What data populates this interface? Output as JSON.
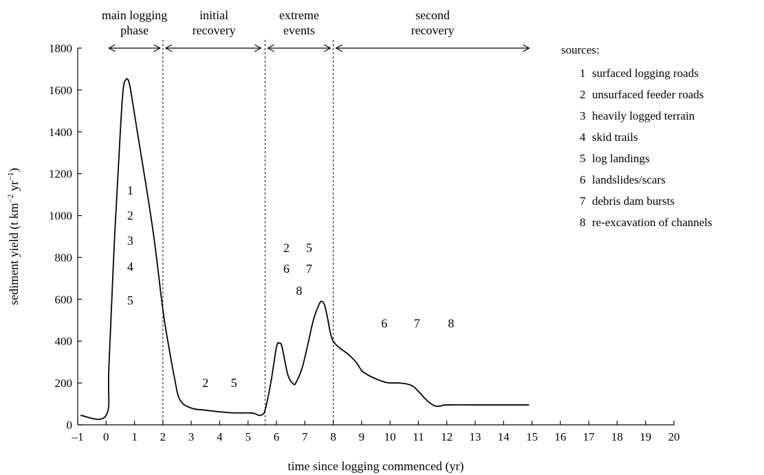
{
  "chart_data": {
    "type": "line",
    "title": "",
    "xlabel": "time since logging commenced (yr)",
    "ylabel": "sediment yield (t km",
    "ylabel_sup1": "−2",
    "ylabel_mid": " yr",
    "ylabel_sup2": "−1",
    "ylabel_end": ")",
    "xlim": [
      -1,
      20
    ],
    "ylim": [
      0,
      1800
    ],
    "xticks": [
      -1,
      0,
      1,
      2,
      3,
      4,
      5,
      6,
      7,
      8,
      9,
      10,
      11,
      12,
      13,
      14,
      15,
      16,
      17,
      18,
      19,
      20
    ],
    "xtick_labels": [
      "–1",
      "0",
      "1",
      "2",
      "3",
      "4",
      "5",
      "6",
      "7",
      "8",
      "9",
      "10",
      "11",
      "12",
      "13",
      "14",
      "15",
      "16",
      "17",
      "18",
      "19",
      "20"
    ],
    "yticks": [
      0,
      200,
      400,
      600,
      800,
      1000,
      1200,
      1400,
      1600,
      1800
    ],
    "ytick_labels": [
      "0",
      "200",
      "400",
      "600",
      "800",
      "1000",
      "1200",
      "1400",
      "1600",
      "1800"
    ],
    "grid": false,
    "color": "#000000",
    "series": [
      {
        "x": [
          -0.9,
          0,
          0.1,
          0.3,
          0.5,
          0.6,
          0.7,
          0.8,
          0.9,
          1.1,
          1.4,
          1.7,
          2.0,
          2.2,
          2.4,
          2.6,
          3.0,
          3.5,
          4.0,
          4.5,
          5.0,
          5.2,
          5.4,
          5.5,
          5.6,
          5.8,
          6.0,
          6.1,
          6.2,
          6.4,
          6.6,
          6.7,
          6.9,
          7.1,
          7.3,
          7.5,
          7.6,
          7.7,
          7.8,
          7.9,
          8.0,
          8.2,
          8.5,
          8.8,
          9.0,
          9.2,
          9.5,
          9.8,
          10.0,
          10.3,
          10.6,
          10.8,
          11.0,
          11.2,
          11.4,
          11.6,
          11.8,
          12.0,
          13.0,
          14.0,
          14.9
        ],
        "y": [
          45,
          45,
          280,
          900,
          1400,
          1600,
          1650,
          1640,
          1570,
          1400,
          1150,
          880,
          550,
          380,
          230,
          120,
          80,
          70,
          62,
          57,
          57,
          55,
          45,
          50,
          70,
          200,
          370,
          390,
          370,
          240,
          195,
          205,
          270,
          380,
          500,
          575,
          590,
          570,
          510,
          440,
          400,
          370,
          340,
          300,
          260,
          240,
          220,
          205,
          200,
          200,
          195,
          185,
          160,
          130,
          105,
          90,
          90,
          95,
          95,
          95,
          95
        ]
      }
    ],
    "phases": [
      {
        "line1": "main logging",
        "line2": "phase",
        "x_from": 0.1,
        "x_to": 1.9,
        "label_x": 1.0
      },
      {
        "line1": "initial",
        "line2": "recovery",
        "x_from": 2.1,
        "x_to": 5.45,
        "label_x": 3.8
      },
      {
        "line1": "extreme",
        "line2": "events",
        "x_from": 5.7,
        "x_to": 7.9,
        "label_x": 6.8
      },
      {
        "line1": "second",
        "line2": "recovery",
        "x_from": 8.1,
        "x_to": 14.9,
        "label_x": 11.5
      }
    ],
    "phase_boundaries": [
      2,
      5.6,
      8
    ],
    "source_annotations": [
      {
        "text": "1",
        "x": 0.85,
        "y": 1120
      },
      {
        "text": "2",
        "x": 0.85,
        "y": 1000
      },
      {
        "text": "3",
        "x": 0.85,
        "y": 880
      },
      {
        "text": "4",
        "x": 0.85,
        "y": 755
      },
      {
        "text": "5",
        "x": 0.85,
        "y": 595
      },
      {
        "text": "2",
        "x": 3.5,
        "y": 200
      },
      {
        "text": "5",
        "x": 4.5,
        "y": 200
      },
      {
        "text": "2",
        "x": 6.35,
        "y": 845
      },
      {
        "text": "5",
        "x": 7.15,
        "y": 845
      },
      {
        "text": "6",
        "x": 6.35,
        "y": 745
      },
      {
        "text": "7",
        "x": 7.15,
        "y": 745
      },
      {
        "text": "8",
        "x": 6.8,
        "y": 640
      },
      {
        "text": "6",
        "x": 9.8,
        "y": 485
      },
      {
        "text": "7",
        "x": 10.95,
        "y": 485
      },
      {
        "text": "8",
        "x": 12.15,
        "y": 485
      }
    ],
    "legend": {
      "title": "sources:",
      "placement": "right",
      "items": [
        {
          "num": "1",
          "label": "surfaced logging roads"
        },
        {
          "num": "2",
          "label": "unsurfaced feeder roads"
        },
        {
          "num": "3",
          "label": "heavily logged terrain"
        },
        {
          "num": "4",
          "label": "skid trails"
        },
        {
          "num": "5",
          "label": "log landings"
        },
        {
          "num": "6",
          "label": "landslides/scars"
        },
        {
          "num": "7",
          "label": "debris dam bursts"
        },
        {
          "num": "8",
          "label": "re-excavation of channels"
        }
      ]
    }
  }
}
